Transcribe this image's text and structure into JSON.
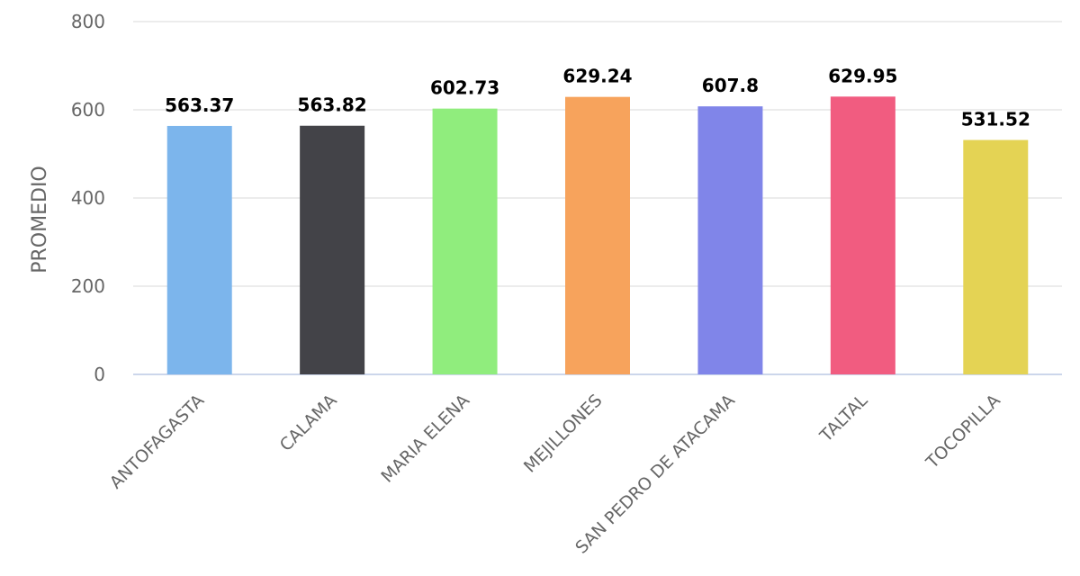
{
  "chart_data": {
    "type": "bar",
    "categories": [
      "ANTOFAGASTA",
      "CALAMA",
      "MARIA ELENA",
      "MEJILLONES",
      "SAN PEDRO DE ATACAMA",
      "TALTAL",
      "TOCOPILLA"
    ],
    "values": [
      563.37,
      563.82,
      602.73,
      629.24,
      607.8,
      629.95,
      531.52
    ],
    "data_labels": [
      "563.37",
      "563.82",
      "602.73",
      "629.24",
      "607.8",
      "629.95",
      "531.52"
    ],
    "colors": [
      "#7cb5ec",
      "#434348",
      "#90ed7d",
      "#f7a35c",
      "#8085e9",
      "#f15c80",
      "#e4d354"
    ],
    "title": "",
    "xlabel": "",
    "ylabel": "PROMEDIO",
    "ylim": [
      0,
      800
    ],
    "yticks": [
      0,
      200,
      400,
      600,
      800
    ],
    "ytick_labels": [
      "0",
      "200",
      "400",
      "600",
      "800"
    ],
    "grid": true,
    "legend": false
  }
}
